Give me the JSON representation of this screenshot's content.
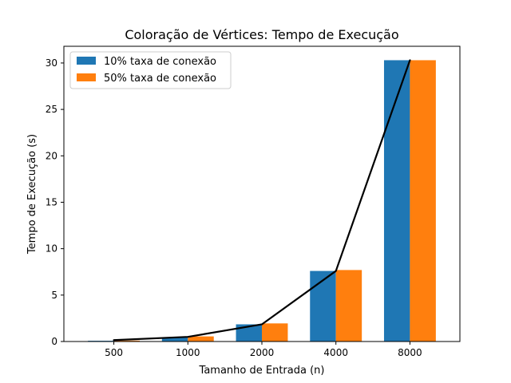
{
  "chart_data": {
    "type": "bar",
    "title": "Coloração de Vértices: Tempo de Execução",
    "xlabel": "Tamanho de Entrada (n)",
    "ylabel": "Tempo de Execução (s)",
    "categories": [
      "500",
      "1000",
      "2000",
      "4000",
      "8000"
    ],
    "series": [
      {
        "name": "10% taxa de conexão",
        "values": [
          0.08,
          0.45,
          1.85,
          7.6,
          30.3
        ],
        "color": "#1f77b4"
      },
      {
        "name": "50% taxa de conexão",
        "values": [
          0.1,
          0.55,
          1.95,
          7.7,
          30.3
        ],
        "color": "#ff7f0e"
      }
    ],
    "line": {
      "values": [
        0.15,
        0.5,
        1.85,
        7.6,
        30.3
      ],
      "color": "#000000"
    },
    "ylim": [
      0,
      31.8
    ],
    "yticks": [
      0,
      5,
      10,
      15,
      20,
      25,
      30
    ],
    "grid": false,
    "legend": "top-left"
  }
}
